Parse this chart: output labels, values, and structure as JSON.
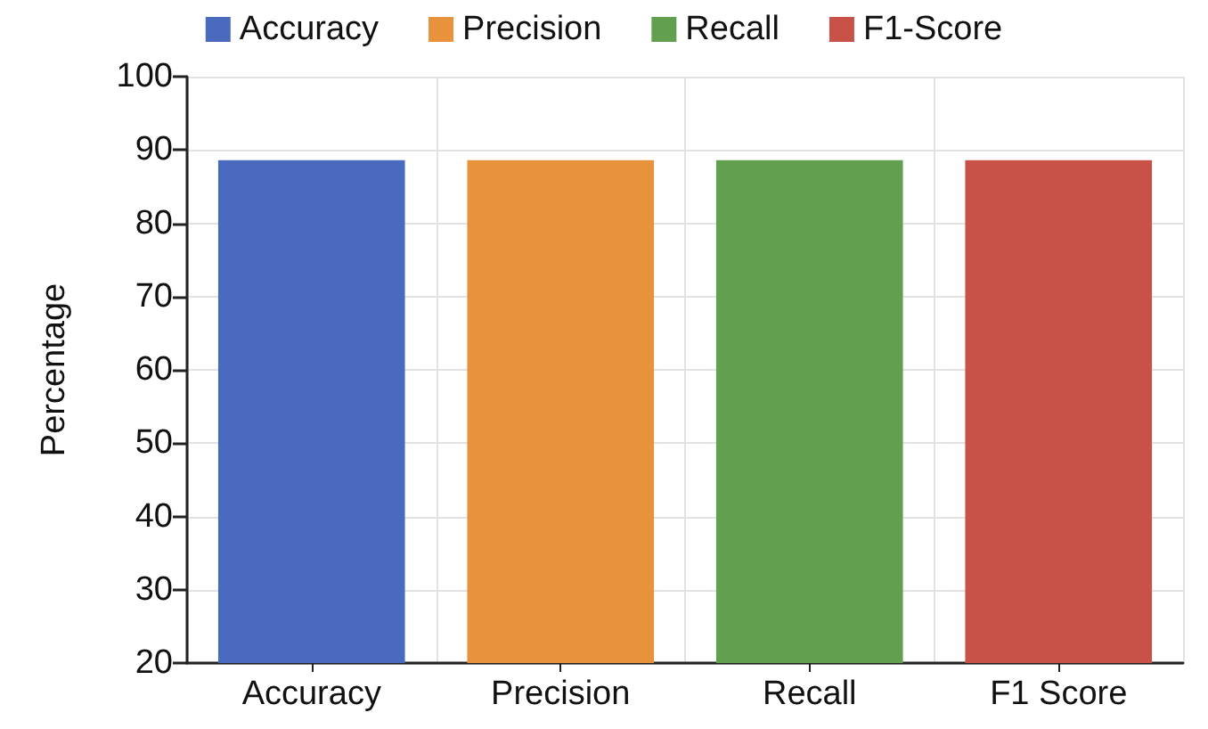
{
  "chart_data": {
    "type": "bar",
    "ylabel": "Percentage",
    "categories": [
      "Accuracy",
      "Precision",
      "Recall",
      "F1 Score"
    ],
    "series": [
      {
        "name": "Accuracy",
        "color": "#4a6bbd",
        "values": [
          88.6,
          null,
          null,
          null
        ]
      },
      {
        "name": "Precision",
        "color": "#e8923c",
        "values": [
          null,
          88.6,
          null,
          null
        ]
      },
      {
        "name": "Recall",
        "color": "#62a04f",
        "values": [
          null,
          null,
          88.6,
          null
        ]
      },
      {
        "name": "F1-Score",
        "color": "#c85248",
        "values": [
          null,
          null,
          null,
          88.6
        ]
      }
    ],
    "ylim": [
      20,
      100
    ],
    "yticks": [
      20,
      30,
      40,
      50,
      60,
      70,
      80,
      90,
      100
    ],
    "grid": true,
    "legend": "top"
  }
}
